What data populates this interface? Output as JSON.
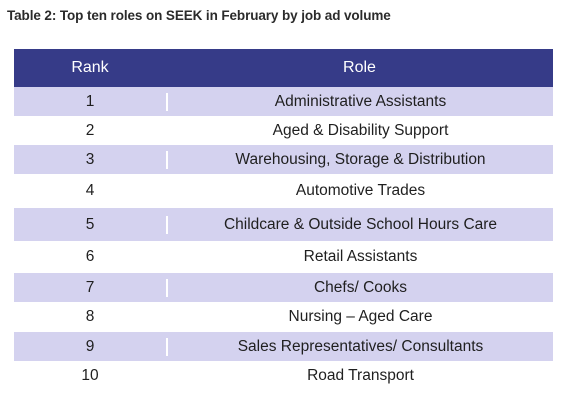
{
  "caption": "Table 2: Top ten roles on SEEK in February by job ad volume",
  "columns": {
    "rank": "Rank",
    "role": "Role"
  },
  "rows": [
    {
      "rank": "1",
      "role": "Administrative Assistants"
    },
    {
      "rank": "2",
      "role": "Aged & Disability Support"
    },
    {
      "rank": "3",
      "role": "Warehousing, Storage & Distribution"
    },
    {
      "rank": "4",
      "role": "Automotive Trades"
    },
    {
      "rank": "5",
      "role": "Childcare & Outside School Hours Care"
    },
    {
      "rank": "6",
      "role": "Retail Assistants"
    },
    {
      "rank": "7",
      "role": "Chefs/ Cooks"
    },
    {
      "rank": "8",
      "role": "Nursing – Aged Care"
    },
    {
      "rank": "9",
      "role": "Sales Representatives/ Consultants"
    },
    {
      "rank": "10",
      "role": "Road Transport"
    }
  ],
  "colors": {
    "header_bg": "#363b88",
    "header_text": "#ffffff",
    "shaded_row": "#d4d2ef",
    "plain_row": "#ffffff"
  }
}
